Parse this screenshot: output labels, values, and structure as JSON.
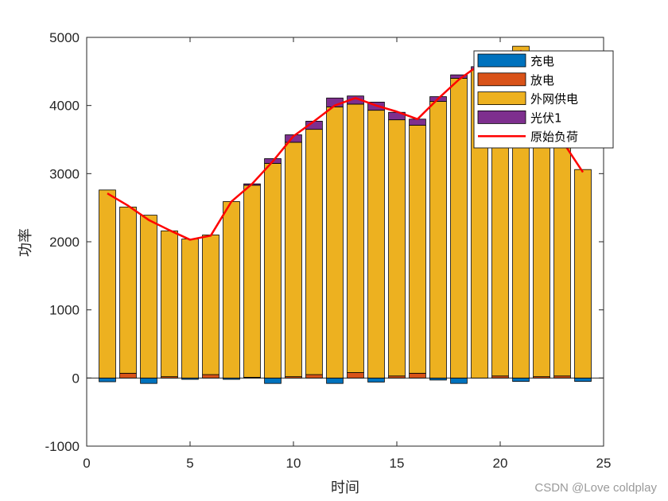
{
  "chart_data": {
    "type": "bar",
    "xlabel": "时间",
    "ylabel": "功率",
    "xlim": [
      0,
      25
    ],
    "ylim": [
      -1000,
      5000
    ],
    "xticks": [
      0,
      5,
      10,
      15,
      20,
      25
    ],
    "yticks": [
      -1000,
      0,
      1000,
      2000,
      3000,
      4000,
      5000
    ],
    "legend_position": "top-right",
    "x": [
      1,
      2,
      3,
      4,
      5,
      6,
      7,
      8,
      9,
      10,
      11,
      12,
      13,
      14,
      15,
      16,
      17,
      18,
      19,
      20,
      21,
      22,
      23,
      24
    ],
    "series": [
      {
        "name": "充电",
        "kind": "bar",
        "color": "#0072BD",
        "values": [
          -55,
          0,
          -80,
          0,
          -20,
          0,
          -20,
          0,
          -80,
          0,
          0,
          -80,
          0,
          -60,
          0,
          0,
          -30,
          -80,
          0,
          0,
          -50,
          0,
          0,
          -50
        ]
      },
      {
        "name": "放电",
        "kind": "bar",
        "color": "#D95319",
        "values": [
          0,
          70,
          0,
          20,
          0,
          50,
          0,
          10,
          0,
          20,
          50,
          0,
          80,
          0,
          30,
          70,
          0,
          0,
          0,
          30,
          0,
          20,
          30,
          0
        ]
      },
      {
        "name": "外网供电",
        "kind": "bar",
        "color": "#EDB120",
        "values": [
          2760,
          2440,
          2390,
          2140,
          2040,
          2050,
          2590,
          2820,
          3150,
          3440,
          3600,
          3980,
          3940,
          3930,
          3760,
          3640,
          4060,
          4400,
          4530,
          4460,
          4870,
          4020,
          3350,
          3060
        ]
      },
      {
        "name": "光伏1",
        "kind": "bar",
        "color": "#7E2F8E",
        "values": [
          0,
          0,
          0,
          0,
          0,
          0,
          0,
          20,
          70,
          110,
          120,
          130,
          120,
          120,
          110,
          90,
          70,
          50,
          40,
          30,
          0,
          0,
          0,
          0
        ]
      },
      {
        "name": "原始负荷",
        "kind": "line",
        "color": "#FF0000",
        "values": [
          2710,
          2530,
          2320,
          2170,
          2030,
          2090,
          2590,
          2850,
          3180,
          3550,
          3770,
          4000,
          4110,
          4000,
          3910,
          3800,
          4100,
          4380,
          4600,
          4500,
          4800,
          4000,
          3480,
          3020
        ]
      }
    ]
  },
  "watermark": "CSDN @Love coldplay"
}
